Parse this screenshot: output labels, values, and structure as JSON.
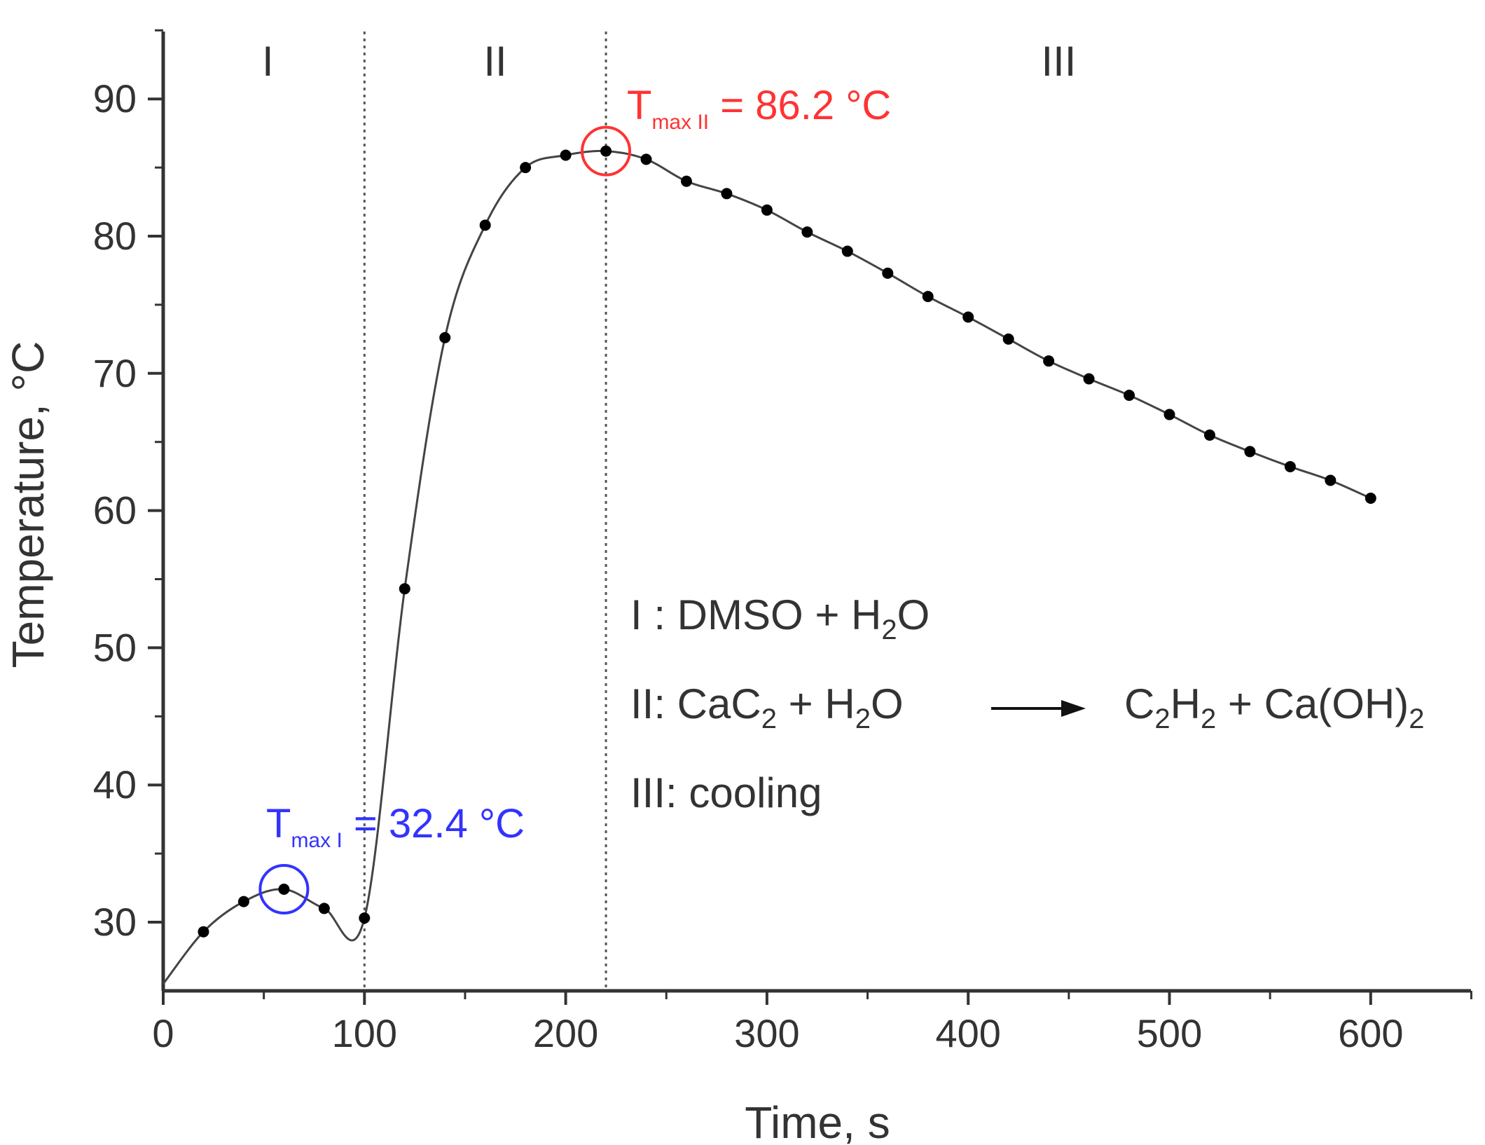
{
  "chart_data": {
    "type": "line",
    "xlabel": "Time, s",
    "ylabel": "Temperature, °C",
    "xlim": [
      0,
      650
    ],
    "ylim": [
      25,
      95
    ],
    "x_ticks": [
      0,
      100,
      200,
      300,
      400,
      500,
      600
    ],
    "y_ticks": [
      30,
      40,
      50,
      60,
      70,
      80,
      90
    ],
    "grid": false,
    "series": [
      {
        "marker": "dot",
        "color": "#000000",
        "x": [
          20,
          40,
          60,
          80,
          100,
          120,
          140,
          160,
          180,
          200,
          220,
          240,
          260,
          280,
          300,
          320,
          340,
          360,
          380,
          400,
          420,
          440,
          460,
          480,
          500,
          520,
          540,
          560,
          580,
          600
        ],
        "y": [
          29.3,
          31.5,
          32.4,
          31.0,
          30.3,
          54.3,
          72.6,
          80.8,
          85.0,
          85.9,
          86.2,
          85.6,
          84.0,
          83.1,
          81.9,
          80.3,
          78.9,
          77.3,
          75.6,
          74.1,
          72.5,
          70.9,
          69.6,
          68.4,
          67.0,
          65.5,
          64.3,
          63.2,
          62.2,
          60.9
        ]
      }
    ],
    "vertical_lines_x": [
      100,
      220
    ],
    "regions": [
      {
        "label": "I",
        "x_center": 52
      },
      {
        "label": "II",
        "x_center": 165
      },
      {
        "label": "III",
        "x_center": 445
      }
    ],
    "annotations": [
      {
        "name": "tmax-1",
        "T": "T",
        "sub": "max I",
        "text": " = 32.4 °C",
        "x": 60,
        "y": 32.4,
        "color": "#3333ff"
      },
      {
        "name": "tmax-2",
        "T": "T",
        "sub": "max II",
        "text": " = 86.2 °C",
        "x": 220,
        "y": 86.2,
        "color": "#ff3333"
      }
    ],
    "legend": {
      "line1": "I : DMSO + H",
      "line1_sub": "2",
      "line1_end": "O",
      "line2_a": "II: CaC",
      "line2_sub1": "2",
      "line2_b": " + H",
      "line2_sub2": "2",
      "line2_c": "O",
      "line2_d": "C",
      "line2_sub3": "2",
      "line2_e": "H",
      "line2_sub4": "2",
      "line2_f": " + Ca(OH)",
      "line2_sub5": "2",
      "line3": "III: cooling"
    }
  }
}
